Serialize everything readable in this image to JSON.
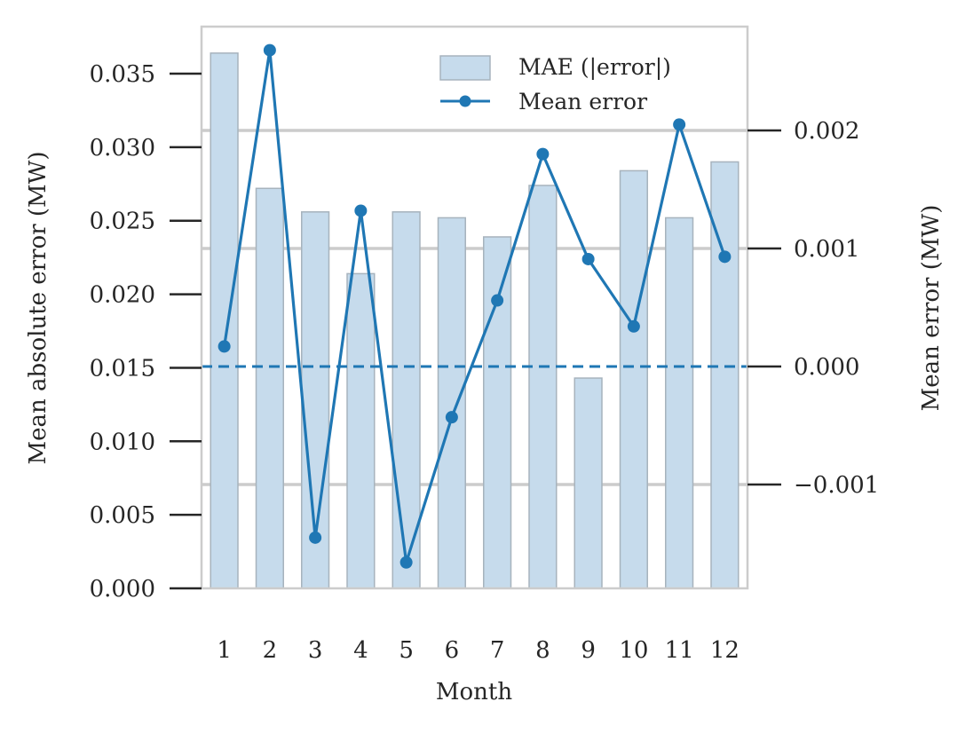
{
  "chart_data": {
    "type": "bar",
    "categories": [
      "1",
      "2",
      "3",
      "4",
      "5",
      "6",
      "7",
      "8",
      "9",
      "10",
      "11",
      "12"
    ],
    "xlabel": "Month",
    "ylabel": "Mean absolute error (MW)",
    "y2label": "Mean error (MW)",
    "ylim": [
      0,
      0.0382
    ],
    "y2lim": [
      -0.00188,
      0.00288
    ],
    "yticks": [
      "0.000",
      "0.005",
      "0.010",
      "0.015",
      "0.020",
      "0.025",
      "0.030",
      "0.035"
    ],
    "y2ticks": [
      "−0.001",
      "0.000",
      "0.001",
      "0.002"
    ],
    "series": [
      {
        "name": "MAE (|error|)",
        "type": "bar",
        "axis": "left",
        "color": "#c6dbec",
        "edge_color": "#a7b3bd",
        "values": [
          0.0364,
          0.0272,
          0.0256,
          0.0214,
          0.0256,
          0.0252,
          0.0239,
          0.0274,
          0.0143,
          0.0284,
          0.0252,
          0.029
        ]
      },
      {
        "name": "Mean error",
        "type": "line",
        "axis": "right",
        "marker": "circle",
        "color": "#1f77b4",
        "values": [
          0.00017,
          0.00268,
          -0.00145,
          0.00132,
          -0.00166,
          -0.00043,
          0.00056,
          0.0018,
          0.00091,
          0.00034,
          0.00205,
          0.00093
        ]
      }
    ],
    "reference_line": {
      "axis": "right",
      "value": 0,
      "style": "dashed",
      "color": "#1f77b4"
    },
    "grid": {
      "on": true,
      "axis": "right-y",
      "color": "#cccccc"
    },
    "legend": {
      "position": "top-right"
    }
  }
}
